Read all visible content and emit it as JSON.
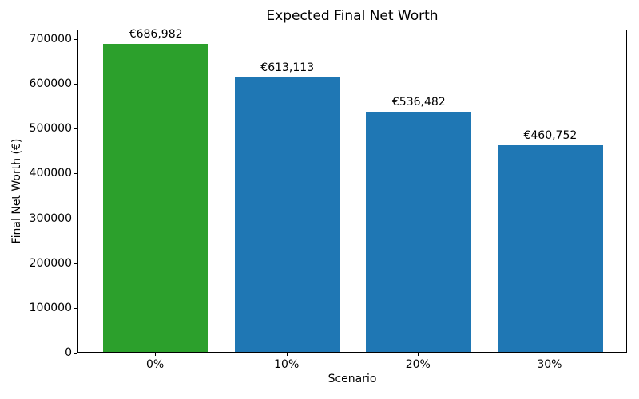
{
  "chart_data": {
    "type": "bar",
    "title": "Expected Final Net Worth",
    "xlabel": "Scenario",
    "ylabel": "Final Net Worth (€)",
    "categories": [
      "0%",
      "10%",
      "20%",
      "30%"
    ],
    "values": [
      686982,
      613113,
      536482,
      460752
    ],
    "bar_labels": [
      "€686,982",
      "€613,113",
      "€536,482",
      "€460,752"
    ],
    "bar_colors": [
      "#2ca02c",
      "#1f77b4",
      "#1f77b4",
      "#1f77b4"
    ],
    "yticks": [
      0,
      100000,
      200000,
      300000,
      400000,
      500000,
      600000,
      700000
    ],
    "ytick_labels": [
      "0",
      "100000",
      "200000",
      "300000",
      "400000",
      "500000",
      "600000",
      "700000"
    ],
    "ylim": [
      0,
      721331
    ],
    "xlim": [
      -0.59,
      3.59
    ],
    "bar_width": 0.8,
    "grid": false,
    "legend": null,
    "highlight_color": "#2ca02c",
    "default_color": "#1f77b4"
  }
}
